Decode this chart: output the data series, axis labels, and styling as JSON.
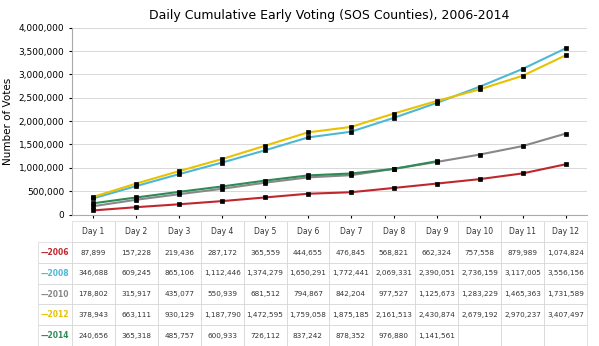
{
  "title": "Daily Cumulative Early Voting (SOS Counties), 2006-2014",
  "ylabel": "Number of Votes",
  "x_labels": [
    "Day 1",
    "Day 2",
    "Day 3",
    "Day 4",
    "Day 5",
    "Day 6",
    "Day 7",
    "Day 8",
    "Day 9",
    "Day 10",
    "Day 11",
    "Day 12"
  ],
  "series": [
    {
      "year": "2006",
      "color": "#c0272d",
      "values": [
        87899,
        157228,
        219436,
        287172,
        365559,
        444655,
        476845,
        568821,
        662324,
        757558,
        879989,
        1074824
      ]
    },
    {
      "year": "2008",
      "color": "#4db8d4",
      "values": [
        346688,
        609245,
        865106,
        1112446,
        1374279,
        1650291,
        1772441,
        2069331,
        2390051,
        2736159,
        3117005,
        3556156
      ]
    },
    {
      "year": "2010",
      "color": "#888888",
      "values": [
        178802,
        315917,
        435077,
        550939,
        681512,
        794867,
        842204,
        977527,
        1125673,
        1283229,
        1465363,
        1731589
      ]
    },
    {
      "year": "2012",
      "color": "#e8c200",
      "values": [
        378943,
        663111,
        930129,
        1187790,
        1472595,
        1759058,
        1875185,
        2161513,
        2430874,
        2679192,
        2970237,
        3407497
      ]
    },
    {
      "year": "2014",
      "color": "#2e8b57",
      "values": [
        240656,
        365318,
        485757,
        600933,
        726112,
        837242,
        878352,
        976880,
        1141561,
        null,
        null,
        null
      ]
    }
  ],
  "ylim": [
    0,
    4000000
  ],
  "yticks": [
    0,
    500000,
    1000000,
    1500000,
    2000000,
    2500000,
    3000000,
    3500000,
    4000000
  ],
  "background_color": "#ffffff",
  "grid_color": "#d8d8d8"
}
